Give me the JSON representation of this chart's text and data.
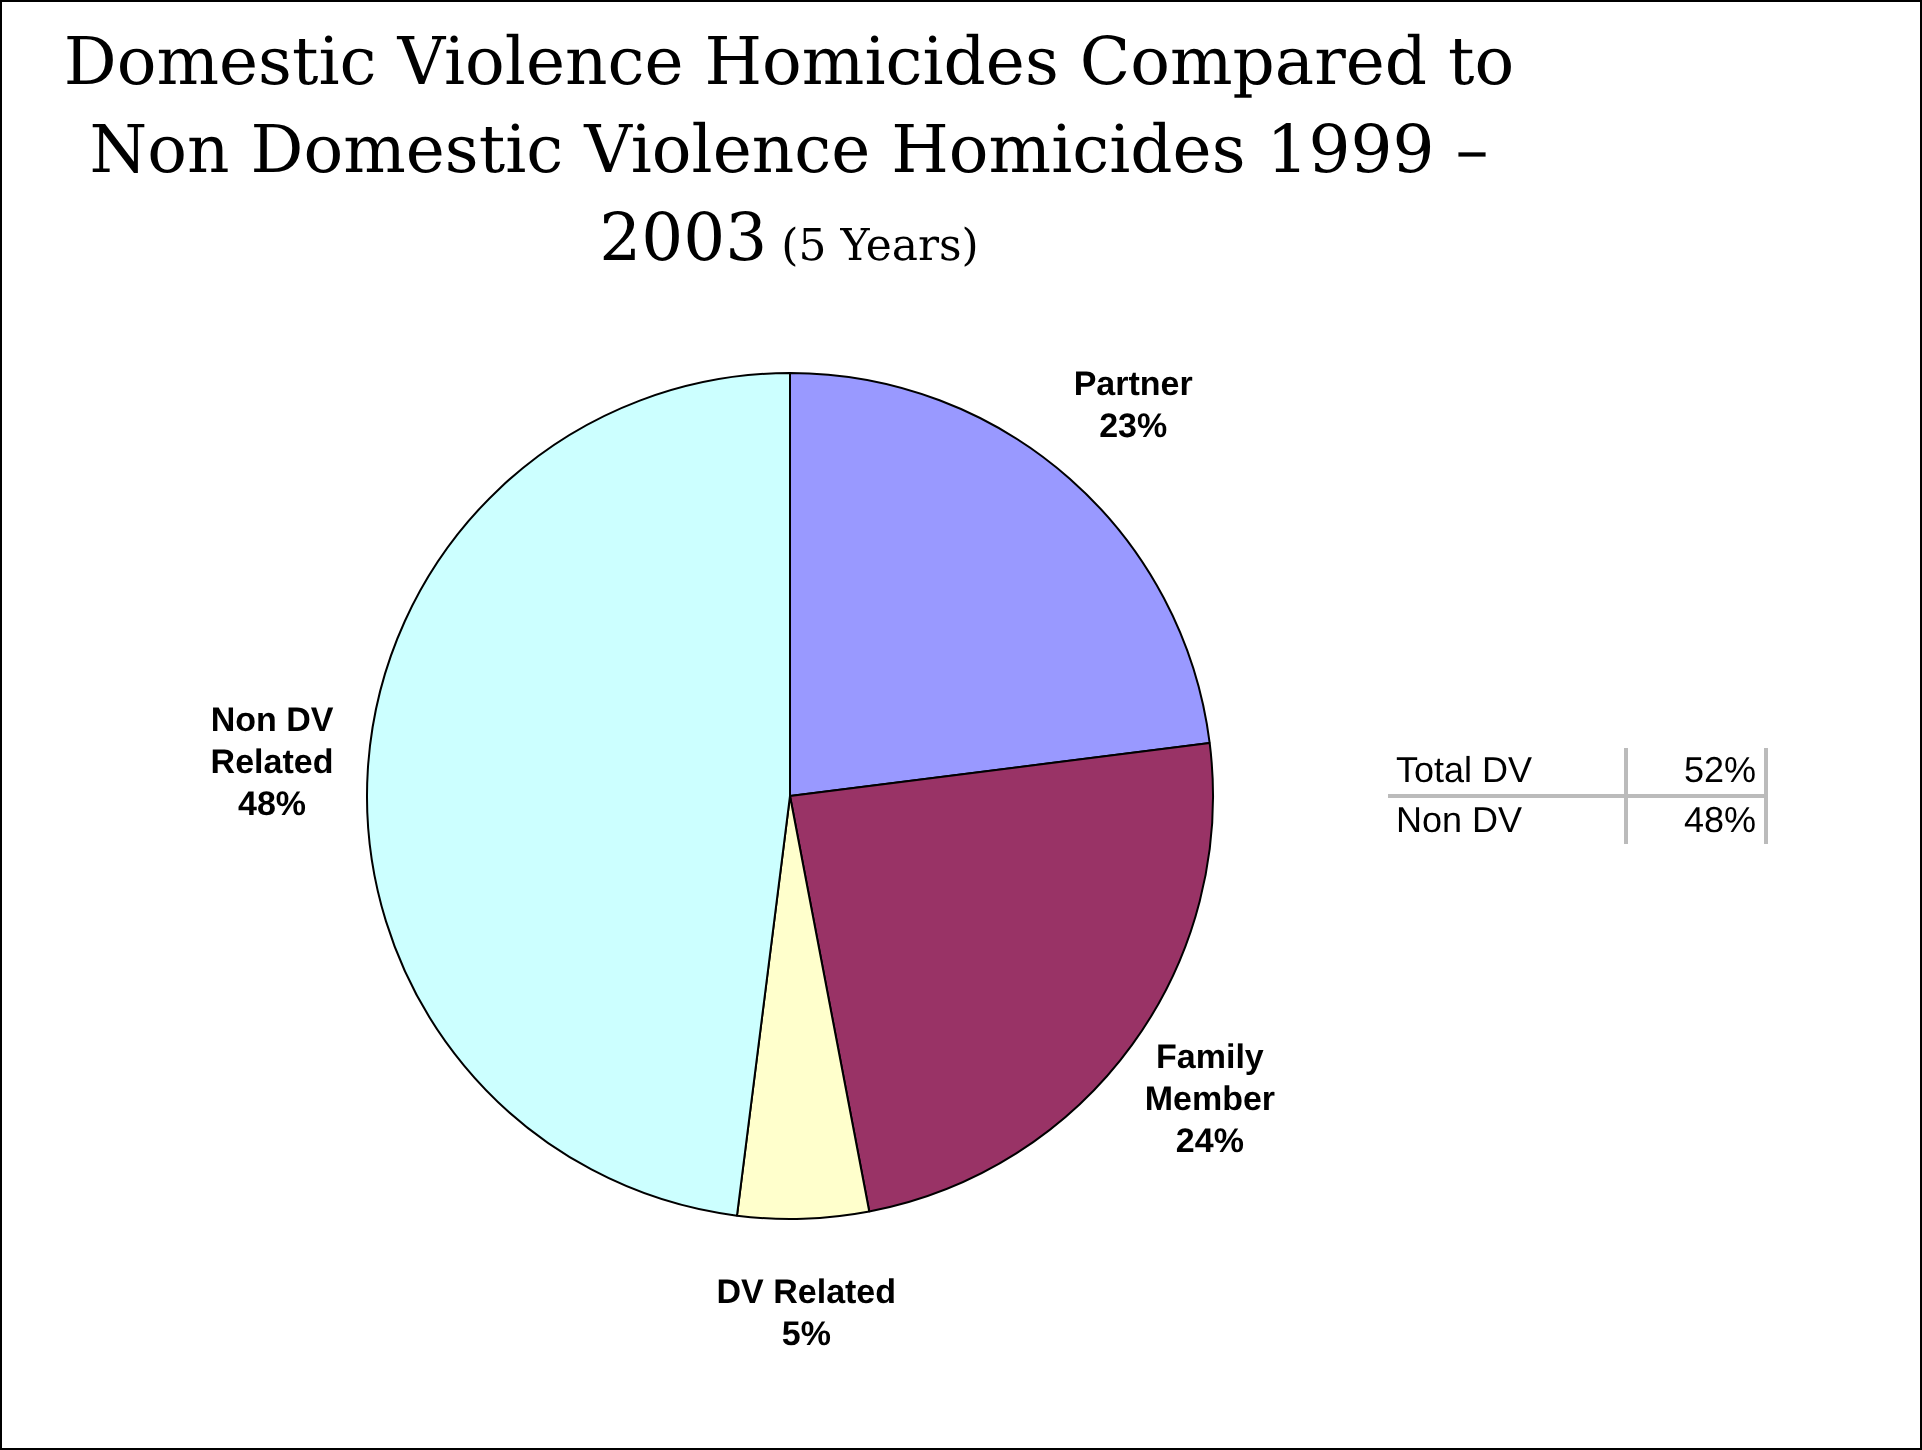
{
  "chart_data": {
    "type": "pie",
    "title": "Domestic Violence Homicides Compared to Non Domestic Violence Homicides 1999 – 2003",
    "subtitle": "(5 Years)",
    "categories": [
      "Partner",
      "Family Member",
      "DV Related",
      "Non DV Related"
    ],
    "values": [
      23,
      24,
      5,
      48
    ],
    "colors": [
      "#9999ff",
      "#993366",
      "#ffffcc",
      "#ccffff"
    ],
    "value_labels": [
      "23%",
      "24%",
      "5%",
      "48%"
    ],
    "annotations": [
      "Total DV 52%",
      "Non DV 48%"
    ],
    "legend": false
  }
}
